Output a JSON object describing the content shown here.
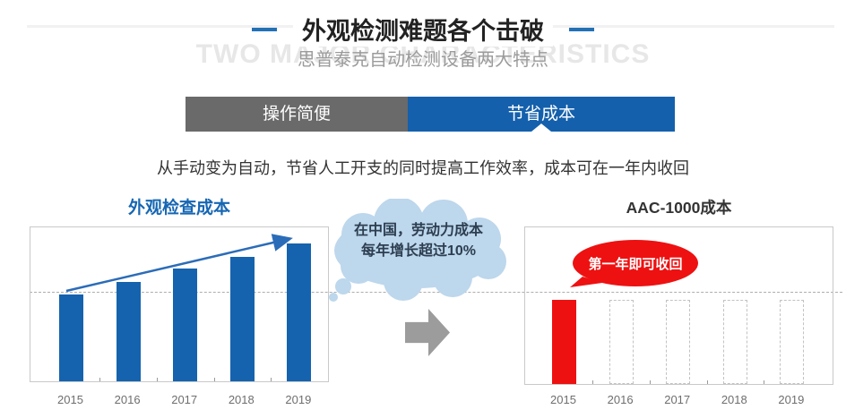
{
  "header": {
    "title": "外观检测难题各个击破",
    "watermark": "TWO MAJOR CHARACTERISTICS",
    "subtitle": "思普泰克自动检测设备两大特点"
  },
  "tabs": [
    {
      "label": "操作简便",
      "active": false
    },
    {
      "label": "节省成本",
      "active": true
    }
  ],
  "description": "从手动变为自动，节省人工开支的同时提高工作效率，成本可在一年内收回",
  "colors": {
    "accent_blue": "#1563ae",
    "tab_gray": "#6a6a6a",
    "tab_blue": "#1460ac",
    "red": "#ee1111",
    "cloud_blue": "#bdd7ec",
    "watermark_gray": "#e7e7e7"
  },
  "chart_data": [
    {
      "type": "bar",
      "title": "外观检查成本",
      "categories": [
        "2015",
        "2016",
        "2017",
        "2018",
        "2019"
      ],
      "values": [
        97,
        111,
        126,
        139,
        154
      ],
      "value_note": "relative cost index; no y-axis labels shown, values proportional to bar heights, steadily rising",
      "color": "#1563ae",
      "bar_styles": [
        "solid",
        "solid",
        "solid",
        "solid",
        "solid"
      ],
      "gridline_value": 100,
      "grid": "single dashed horizontal line at 2015 bar level",
      "trend_arrow": "blue arrow rising from 2015 bar top to 2019 bar top",
      "legend": "none",
      "annotation": {
        "shape": "cloud",
        "lines": [
          "在中国，劳动力成本",
          "每年增长超过10%"
        ]
      }
    },
    {
      "type": "bar",
      "title": "AAC-1000成本",
      "categories": [
        "2015",
        "2016",
        "2017",
        "2018",
        "2019"
      ],
      "values": [
        94,
        94,
        94,
        94,
        94
      ],
      "value_note": "only 2015 bar filled red (one-time cost); 2016-2019 shown as empty dashed placeholders",
      "color": "#ee1111",
      "ghost_color": "#c2c2c2",
      "bar_styles": [
        "solid",
        "ghost",
        "ghost",
        "ghost",
        "ghost"
      ],
      "gridline_value": 101,
      "grid": "single dashed horizontal line just above bar tops",
      "legend": "none",
      "annotation": {
        "shape": "speech-bubble",
        "lines": [
          "第一年即可收回"
        ]
      }
    }
  ]
}
